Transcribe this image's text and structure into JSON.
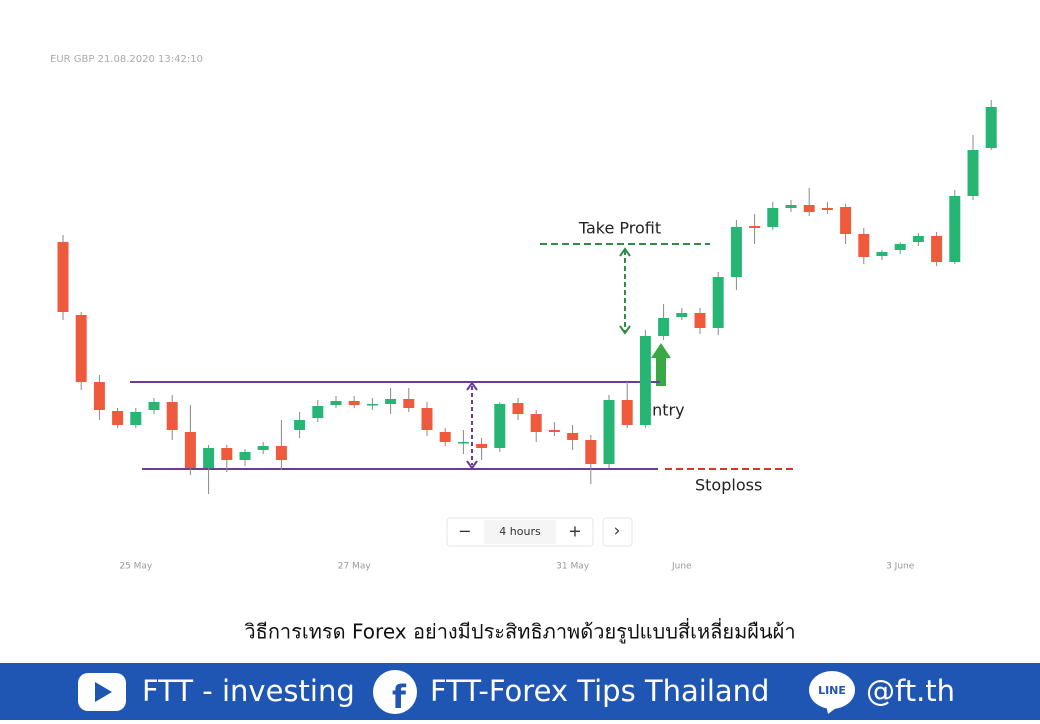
{
  "header": {
    "symbol": "EUR GBP 21.08.2020 13:42:10"
  },
  "chart_data": {
    "type": "candlestick",
    "categories": [
      null,
      null,
      null,
      null,
      "25 May",
      null,
      null,
      null,
      null,
      null,
      null,
      null,
      null,
      null,
      null,
      null,
      "27 May",
      null,
      null,
      null,
      null,
      null,
      null,
      null,
      null,
      null,
      null,
      null,
      "31 May",
      null,
      null,
      null,
      null,
      null,
      "June",
      null,
      null,
      null,
      null,
      null,
      null,
      null,
      null,
      null,
      null,
      null,
      "3 June",
      null,
      null,
      null,
      null,
      null
    ],
    "open": [
      358,
      285,
      218,
      189,
      175,
      190,
      198,
      168,
      132,
      152,
      140,
      150,
      154,
      170,
      182,
      195,
      199,
      196,
      196,
      201,
      192,
      168,
      158,
      156,
      152,
      197,
      186,
      170,
      167,
      160,
      136,
      200,
      175,
      264,
      283,
      287,
      272,
      323,
      374,
      373,
      392,
      395,
      392,
      393,
      366,
      344,
      350,
      358,
      364,
      338,
      404,
      452
    ],
    "high": [
      365,
      288,
      225,
      192,
      192,
      202,
      205,
      195,
      155,
      155,
      151,
      158,
      180,
      188,
      200,
      204,
      204,
      202,
      212,
      212,
      198,
      172,
      170,
      162,
      198,
      202,
      190,
      178,
      175,
      165,
      205,
      218,
      270,
      296,
      292,
      292,
      328,
      380,
      386,
      398,
      400,
      412,
      398,
      396,
      372,
      350,
      358,
      367,
      368,
      410,
      465,
      500
    ],
    "low": [
      280,
      210,
      180,
      172,
      172,
      186,
      160,
      125,
      106,
      128,
      134,
      146,
      130,
      162,
      178,
      192,
      192,
      190,
      186,
      188,
      164,
      154,
      146,
      140,
      148,
      180,
      158,
      164,
      150,
      116,
      132,
      172,
      172,
      260,
      280,
      266,
      265,
      310,
      356,
      370,
      388,
      384,
      386,
      356,
      336,
      340,
      346,
      354,
      334,
      336,
      400,
      450
    ],
    "close": [
      288,
      218,
      190,
      175,
      188,
      198,
      170,
      132,
      152,
      140,
      148,
      154,
      140,
      180,
      194,
      199,
      195,
      196,
      201,
      192,
      170,
      158,
      158,
      152,
      196,
      186,
      168,
      168,
      160,
      136,
      200,
      175,
      264,
      282,
      287,
      272,
      323,
      373,
      372,
      392,
      395,
      388,
      390,
      366,
      343,
      348,
      356,
      364,
      338,
      404,
      450,
      493
    ],
    "up_color": "#26b573",
    "down_color": "#ef5a3c",
    "ylim": [
      0,
      600
    ],
    "annotations": {
      "range_top": 218,
      "range_bottom": 131,
      "take_profit": {
        "label": "Take Profit",
        "value": 356
      },
      "stoploss": {
        "label": "Stoploss",
        "value": 131
      },
      "entry": {
        "label": "Entry"
      }
    }
  },
  "controls": {
    "minus": "−",
    "interval": "4 hours",
    "plus": "+",
    "next": "›"
  },
  "caption": "วิธีการเทรด Forex อย่างมีประสิทธิภาพด้วยรูปแบบสี่เหลี่ยมผืนผ้า",
  "footer": {
    "youtube": "FTT - investing",
    "facebook": "FTT-Forex Tips Thailand",
    "line_icon": "LINE",
    "line": "@ft.th"
  }
}
